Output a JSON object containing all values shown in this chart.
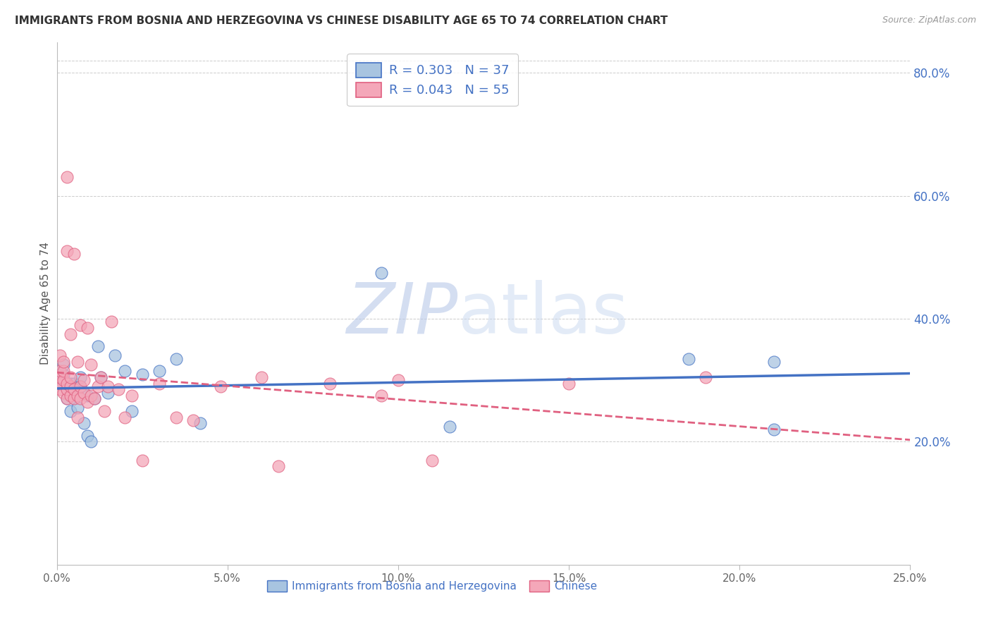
{
  "title": "IMMIGRANTS FROM BOSNIA AND HERZEGOVINA VS CHINESE DISABILITY AGE 65 TO 74 CORRELATION CHART",
  "source": "Source: ZipAtlas.com",
  "ylabel": "Disability Age 65 to 74",
  "xlim": [
    0.0,
    0.25
  ],
  "ylim": [
    0.0,
    0.85
  ],
  "xtick_labels": [
    "0.0%",
    "5.0%",
    "10.0%",
    "15.0%",
    "20.0%",
    "25.0%"
  ],
  "xtick_vals": [
    0.0,
    0.05,
    0.1,
    0.15,
    0.2,
    0.25
  ],
  "ytick_labels_right": [
    "20.0%",
    "40.0%",
    "60.0%",
    "80.0%"
  ],
  "ytick_vals_right": [
    0.2,
    0.4,
    0.6,
    0.8
  ],
  "grid_color": "#cccccc",
  "background_color": "#ffffff",
  "watermark": "ZIPatlas",
  "series": [
    {
      "label": "Immigrants from Bosnia and Herzegovina",
      "R": "0.303",
      "N": "37",
      "color": "#a8c4e0",
      "trend_color": "#4472C4",
      "trend_dash": "solid",
      "x": [
        0.001,
        0.001,
        0.002,
        0.002,
        0.002,
        0.003,
        0.003,
        0.003,
        0.004,
        0.004,
        0.005,
        0.005,
        0.005,
        0.006,
        0.006,
        0.007,
        0.007,
        0.008,
        0.009,
        0.009,
        0.01,
        0.011,
        0.012,
        0.013,
        0.015,
        0.017,
        0.02,
        0.022,
        0.025,
        0.03,
        0.035,
        0.042,
        0.095,
        0.115,
        0.185,
        0.21,
        0.21
      ],
      "y": [
        0.295,
        0.31,
        0.295,
        0.31,
        0.325,
        0.27,
        0.285,
        0.295,
        0.25,
        0.295,
        0.27,
        0.285,
        0.295,
        0.255,
        0.285,
        0.29,
        0.305,
        0.23,
        0.21,
        0.275,
        0.2,
        0.27,
        0.355,
        0.305,
        0.28,
        0.34,
        0.315,
        0.25,
        0.31,
        0.315,
        0.335,
        0.23,
        0.475,
        0.225,
        0.335,
        0.33,
        0.22
      ]
    },
    {
      "label": "Chinese",
      "R": "0.043",
      "N": "55",
      "color": "#f4a7b9",
      "trend_color": "#e06080",
      "trend_dash": "dashed",
      "x": [
        0.001,
        0.001,
        0.001,
        0.001,
        0.001,
        0.002,
        0.002,
        0.002,
        0.002,
        0.003,
        0.003,
        0.003,
        0.003,
        0.003,
        0.004,
        0.004,
        0.004,
        0.004,
        0.005,
        0.005,
        0.005,
        0.006,
        0.006,
        0.006,
        0.007,
        0.007,
        0.007,
        0.008,
        0.008,
        0.009,
        0.009,
        0.01,
        0.01,
        0.011,
        0.012,
        0.013,
        0.014,
        0.015,
        0.016,
        0.018,
        0.02,
        0.022,
        0.025,
        0.03,
        0.035,
        0.04,
        0.048,
        0.06,
        0.065,
        0.08,
        0.095,
        0.1,
        0.11,
        0.15,
        0.19
      ],
      "y": [
        0.285,
        0.295,
        0.305,
        0.315,
        0.34,
        0.28,
        0.3,
        0.315,
        0.33,
        0.27,
        0.285,
        0.295,
        0.51,
        0.63,
        0.275,
        0.29,
        0.305,
        0.375,
        0.27,
        0.285,
        0.505,
        0.24,
        0.275,
        0.33,
        0.27,
        0.29,
        0.39,
        0.28,
        0.3,
        0.265,
        0.385,
        0.275,
        0.325,
        0.27,
        0.29,
        0.305,
        0.25,
        0.29,
        0.395,
        0.285,
        0.24,
        0.275,
        0.17,
        0.295,
        0.24,
        0.235,
        0.29,
        0.305,
        0.16,
        0.295,
        0.275,
        0.3,
        0.17,
        0.295,
        0.305
      ]
    }
  ],
  "legend_items": [
    {
      "R": "0.303",
      "N": "37",
      "face_color": "#a8c4e0",
      "edge_color": "#4472C4"
    },
    {
      "R": "0.043",
      "N": "55",
      "face_color": "#f4a7b9",
      "edge_color": "#e06080"
    }
  ],
  "title_fontsize": 11,
  "axis_label_fontsize": 11,
  "tick_fontsize": 11,
  "right_tick_color": "#4472C4",
  "watermark_color": "#ccd8ee",
  "watermark_fontsize": 72
}
